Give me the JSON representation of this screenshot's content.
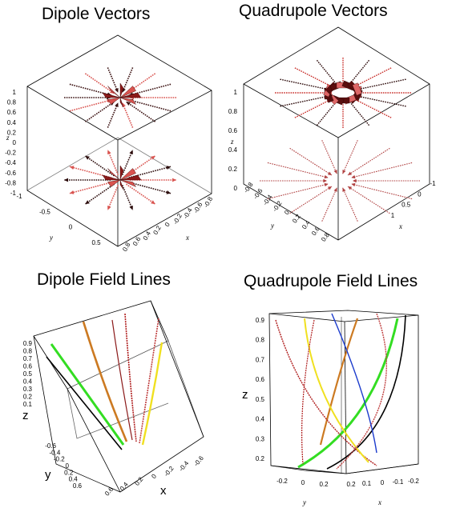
{
  "chart_data": [
    {
      "type": "other",
      "plot_style": "3D vector field (arrows)",
      "title": "Dipole Vectors",
      "axes": {
        "x": {
          "label": "x",
          "ticks": [
            "-0.8",
            "-0.6",
            "-0.4",
            "-0.2",
            "0",
            "0.2",
            "0.4",
            "0.6",
            "0.8"
          ]
        },
        "y": {
          "label": "y",
          "ticks": [
            "-1",
            "-0.5",
            "0",
            "0.5"
          ]
        },
        "z": {
          "label": "z",
          "ticks": [
            "1",
            "0.8",
            "0.6",
            "0.4",
            "0.2",
            "0",
            "-0.2",
            "-0.4",
            "-0.6",
            "-0.8",
            "-1"
          ]
        }
      },
      "arrow_color": "#d9534f"
    },
    {
      "type": "other",
      "plot_style": "3D vector field (arrows)",
      "title": "Quadrupole Vectors",
      "axes": {
        "x": {
          "label": "x",
          "ticks": [
            "-1",
            "0",
            "0.5",
            "1"
          ]
        },
        "y": {
          "label": "y",
          "ticks": [
            "-0.8",
            "-0.6",
            "-0.4",
            "-0.2",
            "0",
            "0.2",
            "0.4",
            "0.6",
            "0.8"
          ]
        },
        "z": {
          "label": "z",
          "ticks": [
            "1",
            "0.8",
            "0.6",
            "0.4",
            "0.2",
            "0"
          ]
        }
      },
      "arrow_color": "#c9302c"
    },
    {
      "type": "line",
      "plot_style": "3D field lines",
      "title": "Dipole Field Lines",
      "axes": {
        "x": {
          "label": "x",
          "ticks": [
            "0.6",
            "0.4",
            "0.2",
            "0",
            "-0.2",
            "-0.4",
            "-0.6"
          ]
        },
        "y": {
          "label": "y",
          "ticks": [
            "-0.6",
            "-0.4",
            "-0.2",
            "0",
            "0.2",
            "0.4",
            "0.6"
          ]
        },
        "z": {
          "label": "z",
          "ticks": [
            "0.9",
            "0.8",
            "0.7",
            "0.6",
            "0.5",
            "0.4",
            "0.3",
            "0.2",
            "0.1"
          ]
        }
      },
      "line_colors": [
        "#000000",
        "#33dd22",
        "#cc7a22",
        "#b02020",
        "#c04040",
        "#f0e020",
        "#8b1a1a"
      ]
    },
    {
      "type": "line",
      "plot_style": "3D field lines",
      "title": "Quadrupole Field Lines",
      "axes": {
        "x": {
          "label": "x",
          "ticks": [
            "0.2",
            "0.1",
            "0",
            "-0.1",
            "-0.2"
          ]
        },
        "y": {
          "label": "y",
          "ticks": [
            "-0.2",
            "0",
            "0.2"
          ]
        },
        "z": {
          "label": "z",
          "ticks": [
            "0.9",
            "0.8",
            "0.7",
            "0.6",
            "0.5",
            "0.4",
            "0.3",
            "0.2"
          ]
        }
      },
      "line_colors": [
        "#000000",
        "#33dd22",
        "#cc7a22",
        "#b02020",
        "#c04040",
        "#f0e020",
        "#1a3acc"
      ]
    }
  ]
}
